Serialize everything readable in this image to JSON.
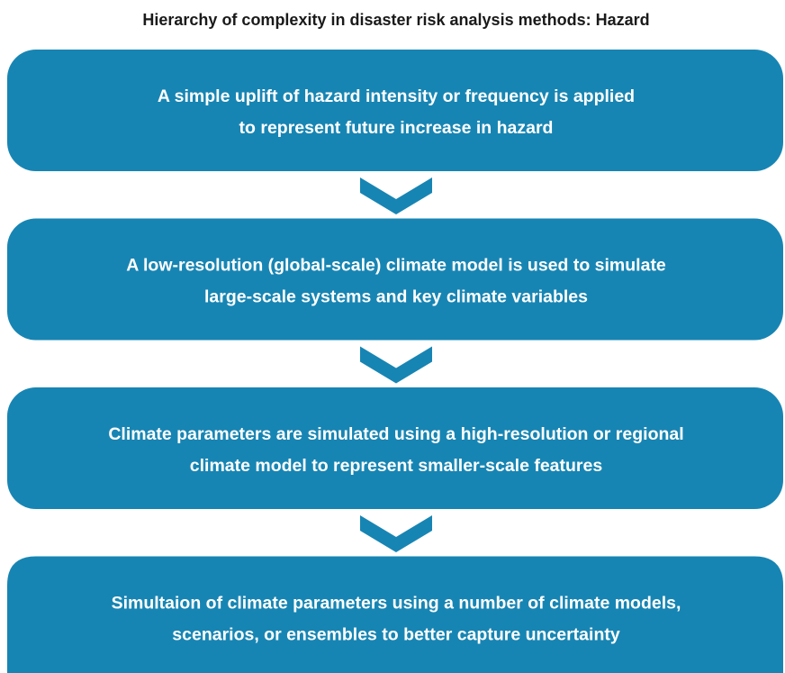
{
  "title": "Hierarchy of complexity in disaster risk analysis methods: Hazard",
  "boxes": [
    {
      "lines": [
        "A simple uplift of hazard intensity or frequency is applied",
        "to represent future increase in hazard"
      ]
    },
    {
      "lines": [
        "A low-resolution (global-scale) climate model is used to simulate",
        "large-scale systems and key climate variables"
      ]
    },
    {
      "lines": [
        "Climate parameters are simulated using a high-resolution or regional",
        "climate model to represent smaller-scale features"
      ]
    },
    {
      "lines": [
        "Simultaion of climate parameters using a number of climate models,",
        "scenarios, or ensembles to better capture uncertainty"
      ]
    }
  ]
}
